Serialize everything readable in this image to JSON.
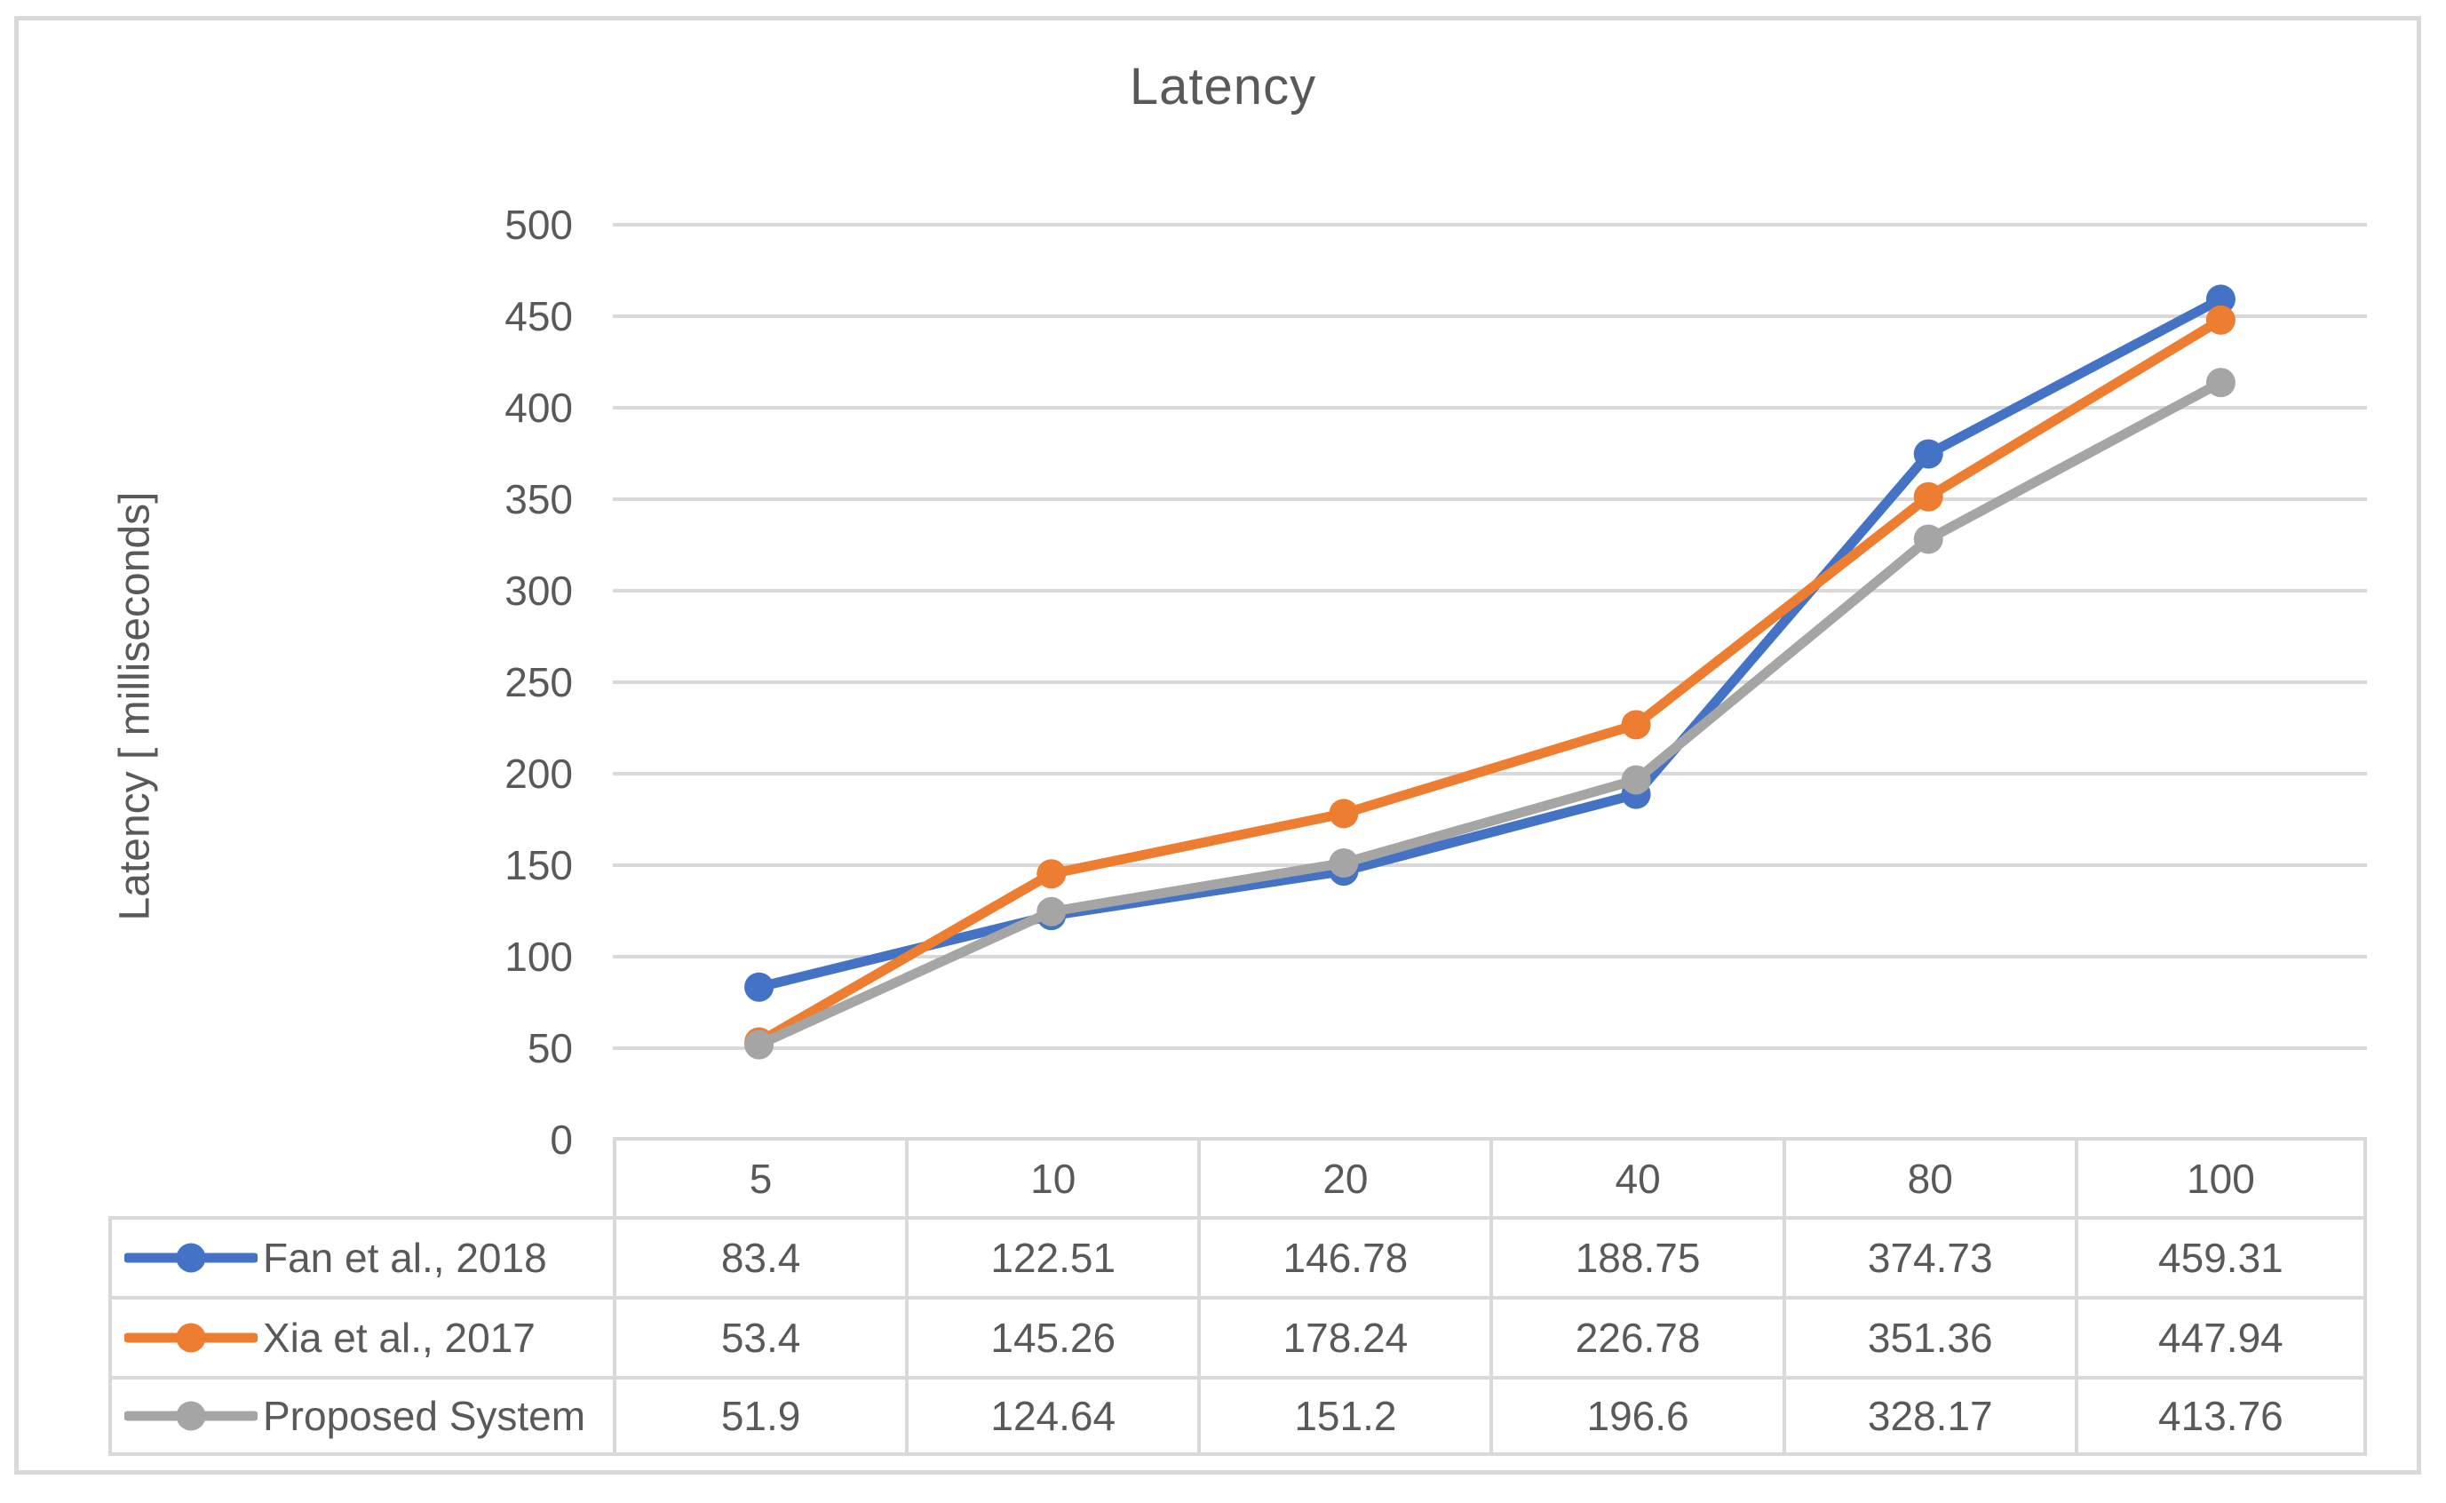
{
  "chart_data": {
    "type": "line",
    "title": "Latency",
    "ylabel": "Latency  [ milliseconds]",
    "xlabel": "",
    "categories": [
      "5",
      "10",
      "20",
      "40",
      "80",
      "100"
    ],
    "series": [
      {
        "name": "Fan et al., 2018",
        "color": "#4472C4",
        "values": [
          83.4,
          122.51,
          146.78,
          188.75,
          374.73,
          459.31
        ]
      },
      {
        "name": "Xia et al., 2017",
        "color": "#ED7D31",
        "values": [
          53.4,
          145.26,
          178.24,
          226.78,
          351.36,
          447.94
        ]
      },
      {
        "name": "Proposed System",
        "color": "#A5A5A5",
        "values": [
          51.9,
          124.64,
          151.2,
          196.6,
          328.17,
          413.76
        ]
      }
    ],
    "ylim": [
      0,
      500
    ],
    "yticks": [
      0,
      50,
      100,
      150,
      200,
      250,
      300,
      350,
      400,
      450,
      500
    ],
    "grid": true,
    "legend_position": "table-left",
    "marker": "circle",
    "colors": {
      "grid": "#D9D9D9",
      "border": "#D9D9D9",
      "text": "#595959",
      "background": "#FFFFFF"
    }
  }
}
